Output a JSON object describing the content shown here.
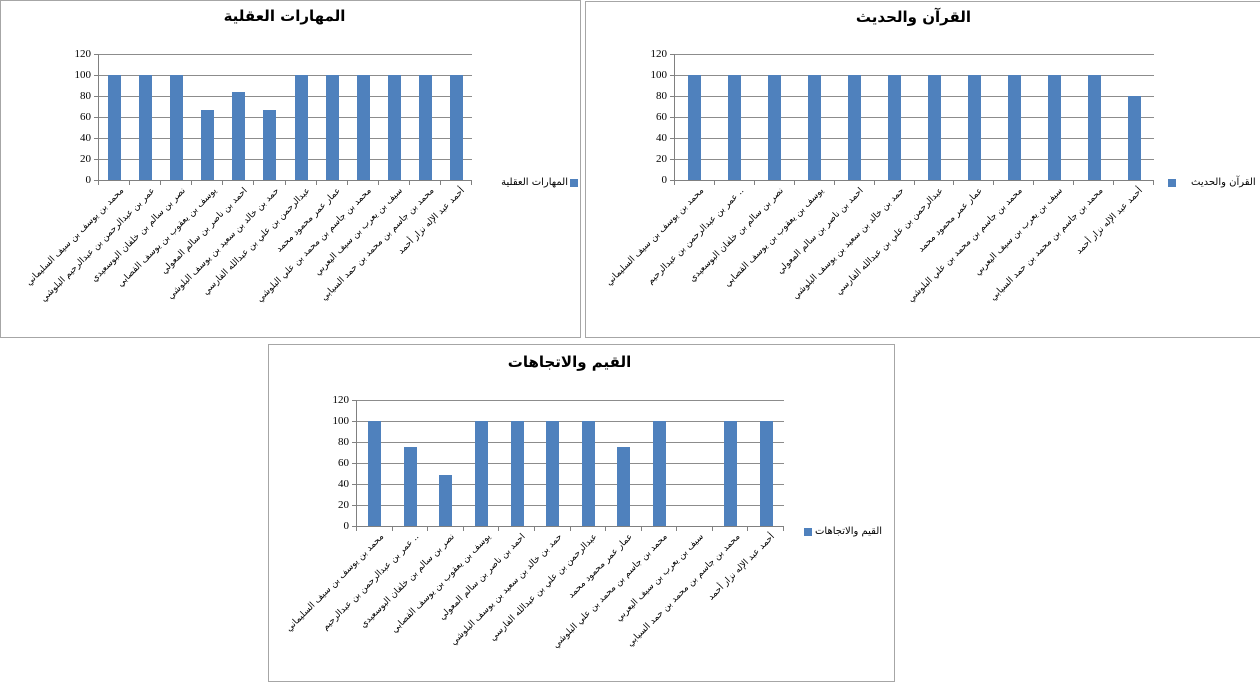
{
  "window": {
    "background": "#ffffff"
  },
  "colors": {
    "bar": "#4F81BD",
    "gridline": "#8C8C8C",
    "axis": "#808080",
    "panel_border": "#A6A6A6",
    "text": "#000000"
  },
  "chart_data": [
    {
      "type": "bar",
      "title": "المهارات العقلية",
      "legend": "المهارات العقلية",
      "legend_position": "right",
      "grid": true,
      "xlabel": "",
      "ylabel": "",
      "ylim": [
        0,
        120
      ],
      "yticks": [
        0,
        20,
        40,
        60,
        80,
        100,
        120
      ],
      "categories": [
        "محمد بن يوسف بن سيف السليماني",
        "عمر بن عبدالرحمن بن عبدالرحيم البلوشي",
        "نصر بن سالم بن خلفان البوسعيدي",
        "يوسف بن يعقوب بن يوسف القصابي",
        "احمد بن ناصر بن سالم المعولي",
        "حمد بن خالد بن سعيد بن يوسف البلوشي",
        "عبدالرحمن بن علي بن عبدالله الفارسي",
        "عمار عمر محمود محمد",
        "محمد بن جاسم بن محمد بن علي البلوشي",
        "سيف بن يعرب بن سيف اليعربي",
        "محمد بن جاسم بن محمد بن حمد السيابي",
        "أحمد عبد الإله نزار أحمد"
      ],
      "values": [
        100,
        100,
        100,
        67,
        84,
        67,
        100,
        100,
        100,
        100,
        100,
        100
      ]
    },
    {
      "type": "bar",
      "title": "القرآن والحديث",
      "legend": "القرآن والحديث",
      "legend_position": "right",
      "grid": true,
      "xlabel": "",
      "ylabel": "",
      "ylim": [
        0,
        120
      ],
      "yticks": [
        0,
        20,
        40,
        60,
        80,
        100,
        120
      ],
      "categories": [
        "محمد بن يوسف بن سيف السليماني",
        ".. عمر بن عبدالرحمن بن عبدالرحيم",
        "نصر بن سالم بن خلفان البوسعيدي",
        "يوسف بن يعقوب بن يوسف القصابي",
        "احمد بن ناصر بن سالم المعولي",
        "حمد بن خالد بن سعيد بن يوسف البلوشي",
        "عبدالرحمن بن علي بن عبدالله الفارسي",
        "عمار عمر محمود محمد",
        "محمد بن جاسم بن محمد بن علي البلوشي",
        "سيف بن يعرب بن سيف اليعربي",
        "محمد بن جاسم بن محمد بن حمد السيابي",
        "أحمد عبد الإله نزار أحمد"
      ],
      "values": [
        100,
        100,
        100,
        100,
        100,
        100,
        100,
        100,
        100,
        100,
        100,
        80
      ]
    },
    {
      "type": "bar",
      "title": "القيم والاتجاهات",
      "legend": "القيم والاتجاهات",
      "legend_position": "right",
      "grid": true,
      "xlabel": "",
      "ylabel": "",
      "ylim": [
        0,
        120
      ],
      "yticks": [
        0,
        20,
        40,
        60,
        80,
        100,
        120
      ],
      "categories": [
        "محمد بن يوسف بن سيف السليماني",
        ".. عمر بن عبدالرحمن بن عبدالرحيم",
        "نصر بن سالم بن خلفان البوسعيدي",
        "يوسف بن يعقوب بن يوسف القصابي",
        "احمد بن ناصر بن سالم المعولي",
        "حمد بن خالد بن سعيد بن يوسف البلوشي",
        "عبدالرحمن بن علي بن عبدالله الفارسي",
        "عمار عمر محمود محمد",
        "محمد بن جاسم بن محمد بن علي البلوشي",
        "سيف بن يعرب بن سيف اليعربي",
        "محمد بن جاسم بن محمد بن حمد السيابي",
        "أحمد عبد الإله نزار أحمد"
      ],
      "values": [
        100,
        75,
        49,
        100,
        100,
        100,
        100,
        75,
        100,
        0,
        100,
        100
      ]
    }
  ]
}
